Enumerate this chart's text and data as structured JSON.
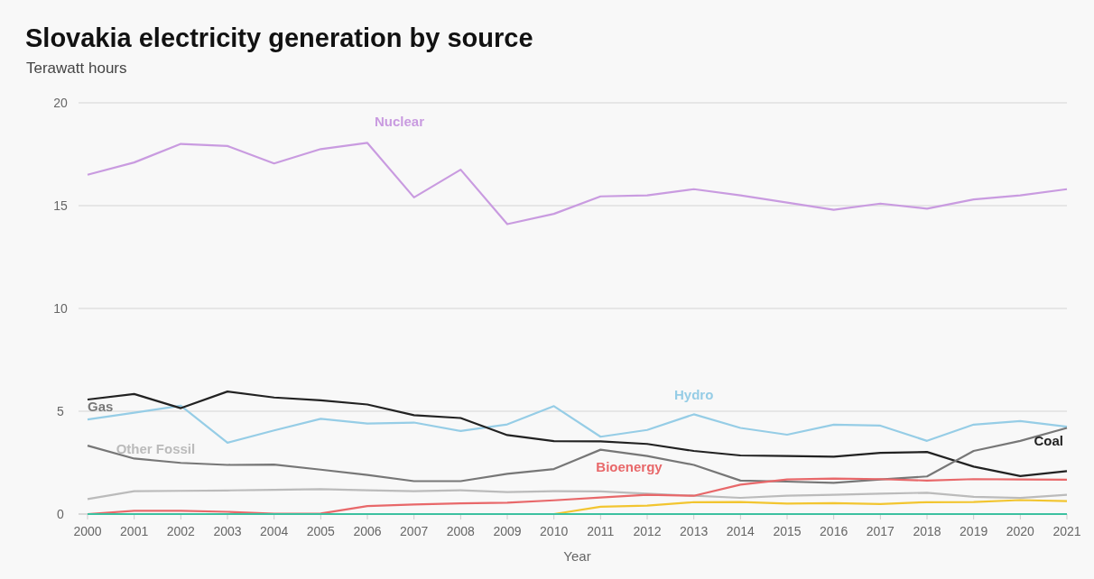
{
  "chart_data": {
    "type": "line",
    "title": "Slovakia electricity generation by source",
    "subtitle": "Terawatt hours",
    "xlabel": "Year",
    "categories": [
      "2000",
      "2001",
      "2002",
      "2003",
      "2004",
      "2005",
      "2006",
      "2007",
      "2008",
      "2009",
      "2010",
      "2011",
      "2012",
      "2013",
      "2014",
      "2015",
      "2016",
      "2017",
      "2018",
      "2019",
      "2020",
      "2021"
    ],
    "ylim": [
      0,
      20
    ],
    "yticks": [
      0,
      5,
      10,
      15,
      20
    ],
    "grid": "y",
    "marker": "none",
    "line_style": "solid",
    "series": [
      {
        "name": "Nuclear",
        "color": "#c99be0",
        "values": [
          16.5,
          17.1,
          18.0,
          17.9,
          17.05,
          17.75,
          18.05,
          15.4,
          16.75,
          14.1,
          14.6,
          15.45,
          15.5,
          15.8,
          15.5,
          15.15,
          14.8,
          15.1,
          14.85,
          15.3,
          15.5,
          15.8
        ]
      },
      {
        "name": "Hydro",
        "color": "#96cde6",
        "values": [
          4.6,
          4.93,
          5.27,
          3.47,
          4.07,
          4.63,
          4.4,
          4.45,
          4.04,
          4.36,
          5.25,
          3.76,
          4.09,
          4.85,
          4.19,
          3.86,
          4.35,
          4.3,
          3.56,
          4.35,
          4.52,
          4.25
        ]
      },
      {
        "name": "Coal",
        "color": "#222222",
        "values": [
          5.57,
          5.84,
          5.15,
          5.96,
          5.67,
          5.53,
          5.33,
          4.81,
          4.67,
          3.84,
          3.55,
          3.54,
          3.41,
          3.07,
          2.85,
          2.82,
          2.79,
          2.98,
          3.02,
          2.31,
          1.85,
          2.09
        ]
      },
      {
        "name": "Gas",
        "color": "#777777",
        "values": [
          3.33,
          2.7,
          2.49,
          2.39,
          2.41,
          2.16,
          1.9,
          1.6,
          1.6,
          1.96,
          2.19,
          3.13,
          2.82,
          2.39,
          1.63,
          1.58,
          1.52,
          1.68,
          1.83,
          3.07,
          3.56,
          4.19
        ]
      },
      {
        "name": "Other Fossil",
        "color": "#bbbbbb",
        "values": [
          0.73,
          1.11,
          1.13,
          1.15,
          1.18,
          1.21,
          1.16,
          1.11,
          1.16,
          1.07,
          1.11,
          1.1,
          0.99,
          0.89,
          0.79,
          0.89,
          0.94,
          0.99,
          1.04,
          0.84,
          0.78,
          0.94
        ]
      },
      {
        "name": "Bioenergy",
        "color": "#e8686a",
        "values": [
          0,
          0.16,
          0.16,
          0.11,
          0.02,
          0.03,
          0.39,
          0.47,
          0.52,
          0.55,
          0.67,
          0.81,
          0.94,
          0.89,
          1.43,
          1.68,
          1.73,
          1.7,
          1.63,
          1.7,
          1.68,
          1.67
        ]
      },
      {
        "color": "#f2c530",
        "values": [
          null,
          null,
          null,
          null,
          null,
          null,
          null,
          null,
          null,
          null,
          0,
          0.36,
          0.41,
          0.58,
          0.59,
          0.51,
          0.53,
          0.49,
          0.58,
          0.59,
          0.68,
          0.63
        ]
      },
      {
        "color": "#3cc1a0",
        "values": [
          0,
          0,
          0,
          0,
          0,
          0,
          0,
          0,
          0,
          0,
          0,
          0,
          0,
          0,
          0,
          0,
          0,
          0,
          0,
          0,
          0,
          0
        ]
      }
    ]
  }
}
